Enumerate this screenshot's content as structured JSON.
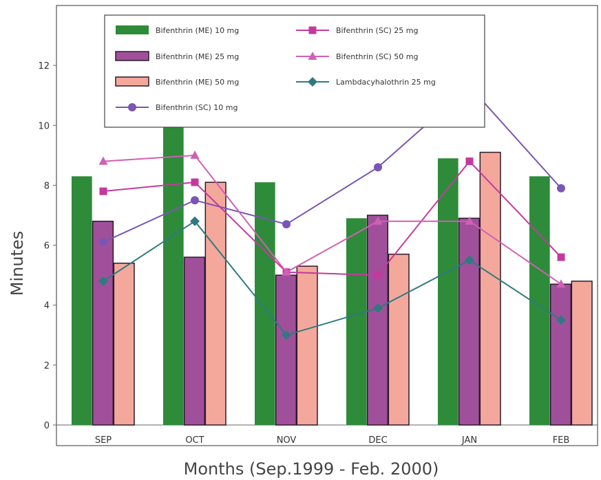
{
  "chart_data": {
    "type": "bar",
    "title": "",
    "xlabel": "Months (Sep.1999 - Feb. 2000)",
    "ylabel": "Minutes",
    "ylim": [
      0,
      14
    ],
    "yticks": [
      0,
      2,
      4,
      6,
      8,
      10,
      12
    ],
    "grid": false,
    "legend_position": "top-left",
    "categories": [
      "SEP",
      "OCT",
      "NOV",
      "DEC",
      "JAN",
      "FEB"
    ],
    "bar_series": [
      {
        "name": "Bifenthrin (ME) 10 mg",
        "color": "#2e8b3a",
        "values": [
          8.3,
          10.3,
          8.1,
          6.9,
          8.9,
          8.3
        ]
      },
      {
        "name": "Bifenthrin (ME) 25 mg",
        "color": "#a0509a",
        "values": [
          6.8,
          5.6,
          5.0,
          7.0,
          6.9,
          4.7
        ]
      },
      {
        "name": "Bifenthrin (ME) 50 mg",
        "color": "#f4a89c",
        "values": [
          5.4,
          8.1,
          5.3,
          5.7,
          9.1,
          4.8
        ]
      }
    ],
    "line_series": [
      {
        "name": "Bifenthrin (SC) 10 mg",
        "color": "#7a55b5",
        "marker": "circle",
        "values": [
          6.1,
          7.5,
          6.7,
          8.6,
          11.3,
          7.9
        ]
      },
      {
        "name": "Bifenthrin (SC) 25 mg",
        "color": "#c33a9e",
        "marker": "square",
        "values": [
          7.8,
          8.1,
          5.1,
          5.0,
          8.8,
          5.6
        ]
      },
      {
        "name": "Bifenthrin (SC) 50 mg",
        "color": "#d05fb5",
        "marker": "triangle",
        "values": [
          8.8,
          9.0,
          5.1,
          6.8,
          6.8,
          4.7
        ]
      },
      {
        "name": "Lambdacyhalothrin 25 mg",
        "color": "#2e7a80",
        "marker": "diamond",
        "values": [
          4.8,
          6.8,
          3.0,
          3.9,
          5.5,
          3.5
        ]
      }
    ]
  }
}
